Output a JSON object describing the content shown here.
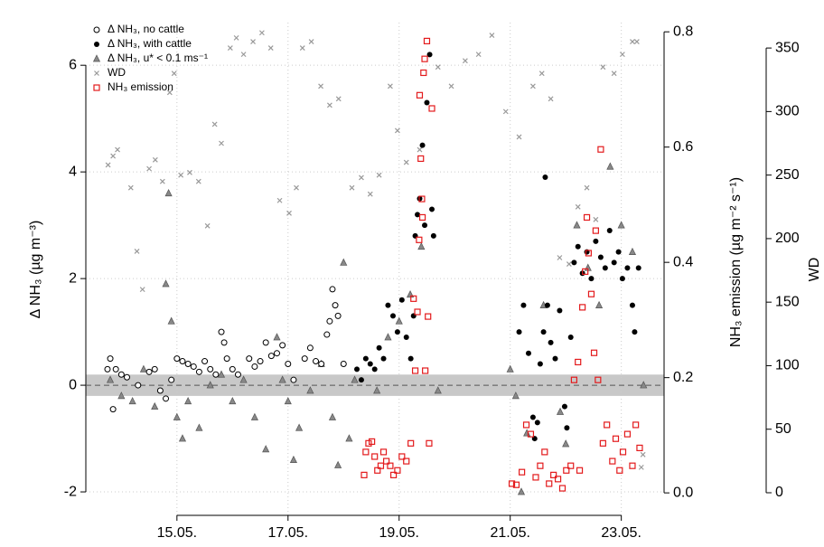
{
  "chart_data": {
    "type": "scatter",
    "ylabel": "Δ NH₃ (µg m⁻³)",
    "y2label": "NH₃ emission (µg m⁻² s⁻¹)",
    "y3label": "WD",
    "xlim": [
      13.36,
      23.77
    ],
    "xticks": [
      {
        "value": 15,
        "label": "15.05."
      },
      {
        "value": 17,
        "label": "17.05."
      },
      {
        "value": 19,
        "label": "19.05."
      },
      {
        "value": 21,
        "label": "21.05."
      },
      {
        "value": 23,
        "label": "23.05."
      }
    ],
    "ylim": [
      -2.44,
      6.8
    ],
    "yticks": [
      -2,
      0,
      2,
      4,
      6
    ],
    "y2lim": [
      -0.039,
      0.816
    ],
    "y2ticks": [
      {
        "value": 0,
        "label": "0.0"
      },
      0.2,
      0.4,
      0.6,
      0.8
    ],
    "y3lim": [
      -17.8,
      370
    ],
    "y3ticks": [
      0,
      50,
      100,
      150,
      200,
      250,
      300,
      350
    ],
    "grid": true,
    "hline": 0,
    "zero_band": [
      -0.2,
      0.2
    ],
    "legend": "top-left",
    "series": [
      {
        "name": "Δ NH₃, no cattle",
        "marker": "open-circle",
        "color": "#000000",
        "x": [
          13.75,
          13.8,
          13.85,
          13.9,
          14.0,
          14.1,
          14.3,
          14.5,
          14.6,
          14.7,
          14.8,
          14.9,
          15.0,
          15.1,
          15.2,
          15.3,
          15.4,
          15.5,
          15.6,
          15.7,
          15.8,
          15.85,
          15.9,
          16.0,
          16.1,
          16.3,
          16.4,
          16.5,
          16.6,
          16.7,
          16.8,
          16.9,
          17.0,
          17.1,
          17.3,
          17.4,
          17.5,
          17.6,
          17.7,
          17.75,
          17.8,
          17.85,
          17.9,
          18.0
        ],
        "values": [
          0.3,
          0.5,
          -0.45,
          0.3,
          0.2,
          0.15,
          0.0,
          0.25,
          0.3,
          -0.1,
          -0.25,
          0.1,
          0.5,
          0.45,
          0.4,
          0.35,
          0.25,
          0.45,
          0.3,
          0.2,
          1.0,
          0.8,
          0.5,
          0.3,
          0.2,
          0.5,
          0.35,
          0.45,
          0.8,
          0.55,
          0.6,
          0.75,
          0.4,
          0.1,
          0.5,
          0.7,
          0.45,
          0.4,
          0.95,
          1.2,
          1.8,
          1.5,
          1.3,
          0.4
        ]
      },
      {
        "name": "Δ NH₃, with cattle",
        "marker": "filled-circle",
        "color": "#000000",
        "x": [
          18.24,
          18.32,
          18.4,
          18.48,
          18.56,
          18.64,
          18.72,
          18.8,
          18.89,
          18.97,
          19.05,
          19.13,
          19.21,
          19.26,
          19.29,
          19.33,
          19.37,
          19.42,
          19.46,
          19.5,
          19.55,
          19.59,
          19.62,
          21.16,
          21.24,
          21.33,
          21.41,
          21.44,
          21.49,
          21.54,
          21.6,
          21.63,
          21.67,
          21.73,
          21.81,
          21.89,
          21.98,
          22.02,
          22.09,
          22.15,
          22.22,
          22.3,
          22.38,
          22.46,
          22.54,
          22.63,
          22.71,
          22.79,
          22.87,
          22.95,
          23.02,
          23.11,
          23.2,
          23.24,
          23.31
        ],
        "values": [
          0.3,
          0.1,
          0.5,
          0.4,
          0.3,
          0.7,
          0.5,
          1.5,
          1.3,
          1.0,
          1.6,
          0.9,
          0.5,
          1.3,
          2.8,
          3.2,
          3.5,
          4.5,
          3.0,
          5.3,
          6.2,
          3.3,
          2.8,
          1.0,
          1.5,
          0.6,
          -0.6,
          -1.0,
          -0.7,
          0.4,
          1.0,
          3.9,
          1.5,
          0.8,
          0.5,
          1.4,
          -0.4,
          -0.8,
          0.9,
          2.3,
          2.6,
          2.1,
          2.5,
          2.0,
          2.7,
          2.4,
          2.2,
          2.9,
          2.3,
          2.5,
          2.0,
          2.2,
          1.5,
          1.0,
          2.2
        ]
      },
      {
        "name": "Δ NH₃, u* < 0.1 ms⁻¹",
        "marker": "triangle",
        "color": "#666666",
        "x": [
          13.8,
          14.0,
          14.2,
          14.4,
          14.6,
          14.8,
          14.85,
          14.9,
          15.0,
          15.1,
          15.2,
          15.4,
          15.6,
          15.8,
          16.0,
          16.2,
          16.4,
          16.6,
          16.8,
          16.9,
          17.0,
          17.1,
          17.2,
          17.4,
          17.6,
          17.8,
          17.9,
          18.0,
          18.1,
          18.2,
          18.6,
          18.8,
          19.0,
          19.2,
          19.4,
          19.7,
          21.0,
          21.1,
          21.2,
          21.3,
          21.6,
          21.9,
          22.0,
          22.2,
          22.4,
          22.6,
          22.8,
          23.0,
          23.2,
          23.4
        ],
        "values": [
          0.1,
          -0.2,
          -0.3,
          0.3,
          -0.4,
          1.9,
          3.6,
          1.2,
          -0.6,
          -1.0,
          -0.3,
          -0.8,
          0.0,
          0.2,
          -0.3,
          0.1,
          -0.6,
          -1.2,
          0.9,
          0.1,
          -0.3,
          -1.4,
          -0.8,
          -0.1,
          0.4,
          -0.6,
          -1.5,
          2.3,
          -1.0,
          0.1,
          -0.1,
          0.9,
          1.2,
          1.7,
          2.6,
          -0.1,
          0.3,
          -0.2,
          -2.0,
          -0.9,
          1.5,
          -0.5,
          -1.1,
          3.0,
          2.2,
          1.5,
          4.1,
          3.0,
          2.5,
          0.0
        ]
      },
      {
        "name": "WD",
        "marker": "cross",
        "color": "#999999",
        "axis": "y3",
        "x": [
          13.76,
          13.85,
          13.93,
          14.17,
          14.28,
          14.38,
          14.5,
          14.61,
          14.74,
          14.87,
          14.95,
          15.07,
          15.23,
          15.39,
          15.55,
          15.68,
          15.8,
          15.96,
          16.07,
          16.2,
          16.37,
          16.53,
          16.69,
          16.85,
          17.02,
          17.15,
          17.26,
          17.42,
          17.59,
          17.75,
          17.91,
          18.15,
          18.32,
          18.48,
          18.64,
          18.84,
          18.97,
          19.13,
          19.37,
          19.7,
          19.94,
          20.19,
          20.43,
          20.67,
          20.92,
          21.16,
          21.41,
          21.57,
          21.73,
          21.89,
          22.06,
          22.22,
          22.38,
          22.54,
          22.67,
          22.87,
          23.02,
          23.2,
          23.28,
          23.36,
          23.39
        ],
        "values": [
          258,
          265,
          270,
          240,
          190,
          160,
          255,
          262,
          245,
          315,
          330,
          250,
          252,
          245,
          210,
          290,
          275,
          350,
          358,
          345,
          355,
          362,
          350,
          230,
          220,
          240,
          350,
          355,
          320,
          305,
          310,
          240,
          248,
          235,
          250,
          320,
          285,
          260,
          270,
          335,
          320,
          340,
          345,
          360,
          300,
          280,
          320,
          330,
          310,
          185,
          180,
          225,
          240,
          215,
          335,
          330,
          345,
          355,
          355,
          20,
          30
        ]
      },
      {
        "name": "NH₃ emission",
        "marker": "square",
        "color": "#e31a1c",
        "axis": "y2",
        "x": [
          18.37,
          18.4,
          18.45,
          18.51,
          18.56,
          18.61,
          18.67,
          18.72,
          18.77,
          18.84,
          18.9,
          18.97,
          19.05,
          19.13,
          19.21,
          19.26,
          19.29,
          19.33,
          19.36,
          19.37,
          19.39,
          19.41,
          19.42,
          19.44,
          19.46,
          19.47,
          19.5,
          19.52,
          19.54,
          19.59,
          21.03,
          21.11,
          21.21,
          21.29,
          21.37,
          21.46,
          21.54,
          21.62,
          21.7,
          21.78,
          21.86,
          21.94,
          22.01,
          22.09,
          22.15,
          22.22,
          22.25,
          22.3,
          22.35,
          22.38,
          22.41,
          22.46,
          22.51,
          22.54,
          22.58,
          22.63,
          22.67,
          22.74,
          22.84,
          22.9,
          22.97,
          23.03,
          23.11,
          23.2,
          23.26,
          23.33
        ],
        "values": [
          0.031,
          0.071,
          0.086,
          0.089,
          0.063,
          0.039,
          0.047,
          0.071,
          0.055,
          0.047,
          0.031,
          0.039,
          0.063,
          0.055,
          0.086,
          0.337,
          0.212,
          0.314,
          0.439,
          0.69,
          0.58,
          0.51,
          0.478,
          0.729,
          0.753,
          0.212,
          0.784,
          0.306,
          0.086,
          0.667,
          0.016,
          0.014,
          0.036,
          0.118,
          0.102,
          0.027,
          0.047,
          0.071,
          0.016,
          0.031,
          0.024,
          0.008,
          0.039,
          0.047,
          0.196,
          0.227,
          0.039,
          0.322,
          0.384,
          0.478,
          0.416,
          0.345,
          0.243,
          0.455,
          0.196,
          0.596,
          0.086,
          0.118,
          0.055,
          0.094,
          0.039,
          0.071,
          0.102,
          0.047,
          0.118,
          0.078
        ]
      }
    ]
  }
}
